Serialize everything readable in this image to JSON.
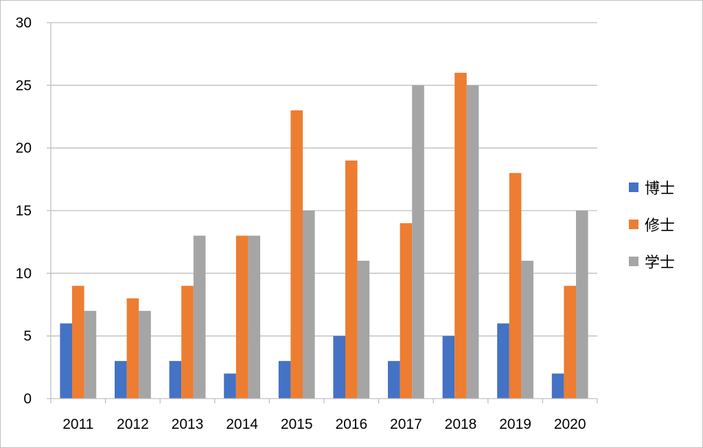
{
  "chart_data": {
    "type": "bar",
    "categories": [
      "2011",
      "2012",
      "2013",
      "2014",
      "2015",
      "2016",
      "2017",
      "2018",
      "2019",
      "2020"
    ],
    "series": [
      {
        "name": "博士",
        "color": "#4472c4",
        "values": [
          6,
          3,
          3,
          2,
          3,
          5,
          3,
          5,
          6,
          2
        ]
      },
      {
        "name": "修士",
        "color": "#ed7d31",
        "values": [
          9,
          8,
          9,
          13,
          23,
          19,
          14,
          26,
          18,
          9
        ]
      },
      {
        "name": "学士",
        "color": "#a5a5a5",
        "values": [
          7,
          7,
          13,
          13,
          15,
          11,
          25,
          25,
          11,
          15
        ]
      }
    ],
    "title": "",
    "xlabel": "",
    "ylabel": "",
    "ylim": [
      0,
      30
    ],
    "yticks": [
      0,
      5,
      10,
      15,
      20,
      25,
      30
    ],
    "grid": true,
    "legend_position": "right"
  }
}
